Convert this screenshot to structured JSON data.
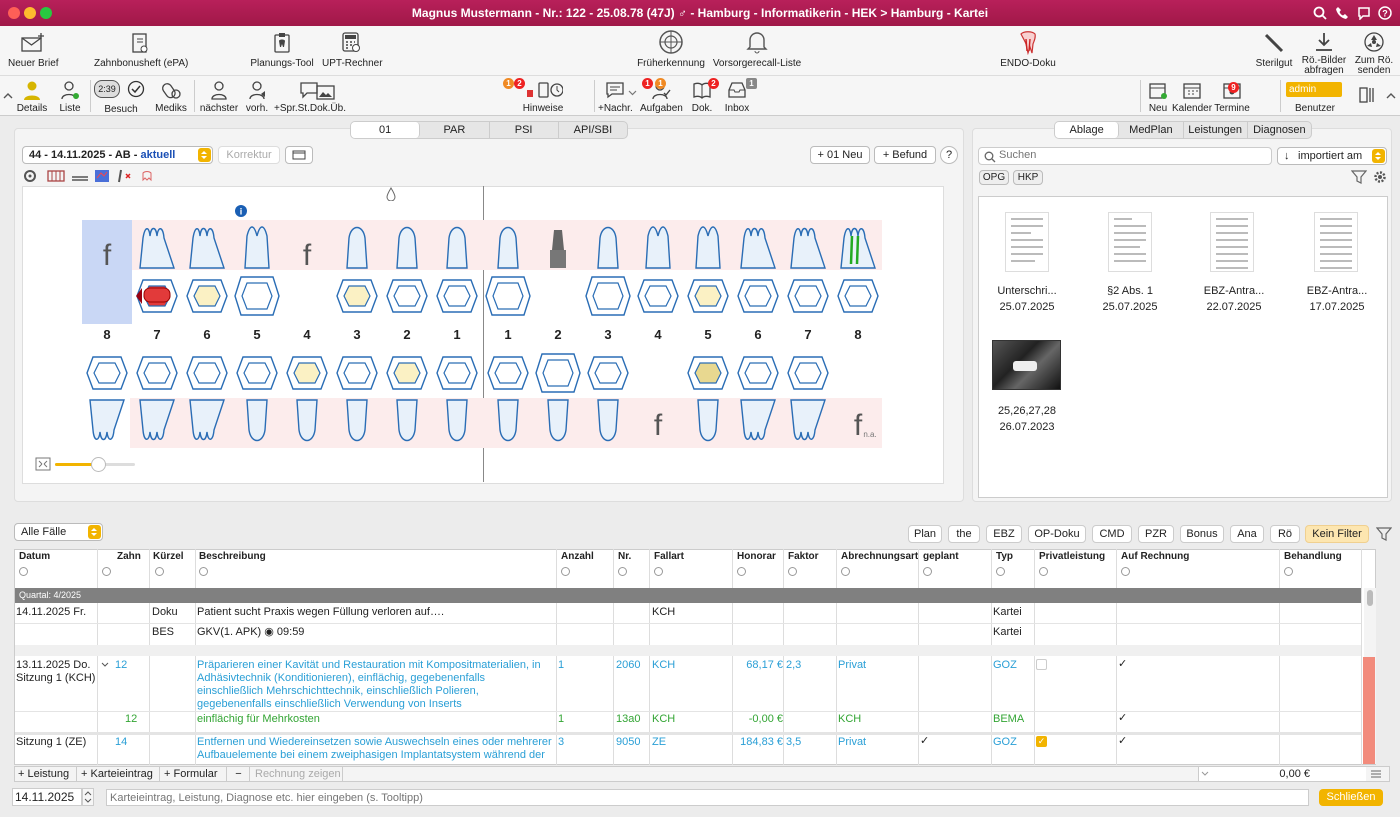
{
  "window": {
    "title": "Magnus Mustermann - Nr.: 122 - 25.08.78 (47J) ♂ - Hamburg - Informatikerin - HEK > Hamburg - Kartei"
  },
  "toolbar1": {
    "neuer_brief": "Neuer Brief",
    "zahnbonusheft": "Zahnbonusheft (ePA)",
    "planungs_tool": "Planungs-Tool",
    "upt_rechner": "UPT-Rechner",
    "frueherkennung": "Früherkennung",
    "vorsorgerecall": "Vorsorgerecall-Liste",
    "endo_doku": "ENDO-Doku",
    "sterilgut": "Sterilgut",
    "roe_bilder": "Rö.-Bilder",
    "roe_bilder2": "abfragen",
    "zum_roe": "Zum Rö.",
    "zum_roe2": "senden"
  },
  "toolbar2": {
    "details": "Details",
    "liste": "Liste",
    "timer": "2:39",
    "besuch": "Besuch",
    "mediks": "Mediks",
    "naechster": "nächster",
    "vorh": "vorh.",
    "spr": "+Spr.St.Dok.Üb.",
    "hinweise": "Hinweise",
    "hinweise_badge1": "1",
    "hinweise_badge2": "2",
    "nachr": "+Nachr.",
    "aufgaben": "Aufgaben",
    "aufgaben_badge1": "1",
    "aufgaben_badge2": "1",
    "dok": "Dok.",
    "dok_badge": "2",
    "inbox": "Inbox",
    "inbox_badge": "1",
    "neu": "Neu",
    "kalender": "Kalender",
    "termine": "Termine",
    "termine_badge": "9",
    "benutzer": "Benutzer",
    "benutzer_value": "admin"
  },
  "chart_tabs": [
    "01",
    "PAR",
    "PSI",
    "API/SBI"
  ],
  "befund": {
    "selector": "44 - 14.11.2025 - AB - ",
    "selector_current": "aktuell",
    "korrektur": "Korrektur",
    "neu": "+ 01 Neu",
    "befund": "+ Befund",
    "help": "?"
  },
  "teeth": {
    "upper_numbers": [
      "8",
      "7",
      "6",
      "5",
      "4",
      "3",
      "2",
      "1",
      "1",
      "2",
      "3",
      "4",
      "5",
      "6",
      "7",
      "8"
    ],
    "upper_f": "f",
    "lower_f": "f",
    "na": "n.a."
  },
  "right_tabs": [
    "Ablage",
    "MedPlan",
    "Leistungen",
    "Diagnosen"
  ],
  "ablage": {
    "search_placeholder": "Suchen",
    "sort": "importiert am",
    "tag1": "OPG",
    "tag2": "HKP",
    "docs": [
      {
        "name": "Unterschri...",
        "date": "25.07.2025"
      },
      {
        "name": "§2 Abs. 1",
        "date": "25.07.2025"
      },
      {
        "name": "EBZ-Antra...",
        "date": "22.07.2025"
      },
      {
        "name": "EBZ-Antra...",
        "date": "17.07.2025"
      },
      {
        "name": "25,26,27,28",
        "date": "26.07.2023"
      }
    ]
  },
  "filter": {
    "faelle": "Alle Fälle",
    "buttons": [
      "Plan",
      "the",
      "EBZ",
      "OP-Doku",
      "CMD",
      "PZR",
      "Bonus",
      "Ana",
      "Rö"
    ],
    "kein_filter": "Kein Filter"
  },
  "table": {
    "headers": [
      "Datum",
      "Zahn",
      "Kürzel",
      "Beschreibung",
      "Anzahl",
      "Nr.",
      "Fallart",
      "Honorar",
      "Faktor",
      "Abrechnungsart",
      "geplant",
      "Typ",
      "Privatleistung",
      "Auf Rechnung",
      "Behandlung"
    ],
    "quartal": "Quartal: 4/2025",
    "rows": [
      {
        "datum": "14.11.2025 Fr.",
        "kuerzel": "Doku",
        "beschreibung": "Patient sucht Praxis wegen Füllung verloren auf….",
        "fallart": "KCH",
        "typ": "Kartei"
      },
      {
        "kuerzel": "BES",
        "beschreibung": "GKV(1. APK) ◉ 09:59",
        "typ": "Kartei"
      },
      {
        "datum": "13.11.2025 Do.",
        "datum2": "Sitzung 1 (KCH)",
        "zahn": "12",
        "beschreibung": "Präparieren einer Kavität und Restauration mit Kompositmaterialien, in Adhäsivtechnik (Konditionieren), einflächig, gegebenenfalls einschließlich Mehrschichttechnik, einschließlich Polieren, gegebenenfalls einschließlich Verwendung von Inserts",
        "anzahl": "1",
        "nr": "2060",
        "fallart": "KCH",
        "honorar": "68,17 €",
        "faktor": "2,3",
        "abrechnungsart": "Privat",
        "typ": "GOZ"
      },
      {
        "zahn": "12",
        "beschreibung": "einflächig für Mehrkosten",
        "anzahl": "1",
        "nr": "13a0",
        "fallart": "KCH",
        "honorar": "-0,00 €",
        "abrechnungsart": "KCH",
        "typ": "BEMA"
      },
      {
        "datum": "Sitzung 1 (ZE)",
        "zahn": "14",
        "beschreibung": "Entfernen und Wiedereinsetzen sowie Auswechseln eines oder mehrerer Aufbauelemente bei einem zweiphasigen Implantatsystem während der",
        "anzahl": "3",
        "nr": "9050",
        "fallart": "ZE",
        "honorar": "184,83 €",
        "faktor": "3,5",
        "abrechnungsart": "Privat",
        "typ": "GOZ"
      }
    ]
  },
  "bottom": {
    "leistung": "+ Leistung",
    "karteieintrag": "+ Karteieintrag",
    "formular": "+ Formular",
    "minus": "−",
    "rechnung": "Rechnung zeigen",
    "sum": "0,00 €",
    "date": "14.11.2025",
    "input_placeholder": "Karteieintrag, Leistung, Diagnose etc. hier eingeben (s. Tooltipp)",
    "schliessen": "Schließen"
  }
}
